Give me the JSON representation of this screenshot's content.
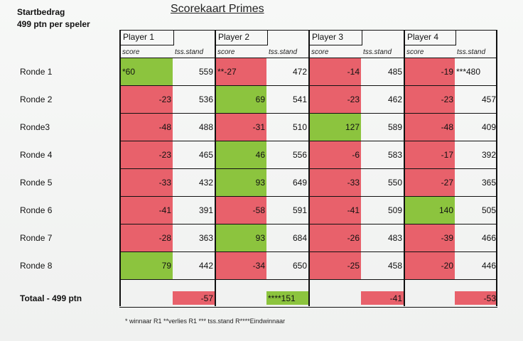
{
  "header": {
    "start_line1": "Startbedrag",
    "start_line2": "499 ptn per speler",
    "title": "Scorekaart Primes"
  },
  "colors": {
    "loss": "#e8616b",
    "win": "#8cc43e"
  },
  "players": [
    {
      "name": "Player 1",
      "score_label": "score",
      "stand_label": "tss.stand"
    },
    {
      "name": "Player 2",
      "score_label": "score",
      "stand_label": "tss.stand"
    },
    {
      "name": "Player 3",
      "score_label": "score",
      "stand_label": "tss.stand"
    },
    {
      "name": "Player 4",
      "score_label": "score",
      "stand_label": "tss.stand"
    }
  ],
  "rounds": [
    {
      "label": "Ronde 1",
      "cells": [
        {
          "score": "*60",
          "color": "green",
          "stand": "559"
        },
        {
          "score": "**-27",
          "color": "red",
          "stand": "472"
        },
        {
          "score": "-14",
          "color": "red",
          "stand": "485"
        },
        {
          "score": "-19",
          "color": "red",
          "stand": "***480"
        }
      ]
    },
    {
      "label": "Ronde 2",
      "cells": [
        {
          "score": "-23",
          "color": "red",
          "stand": "536"
        },
        {
          "score": "69",
          "color": "green",
          "stand": "541"
        },
        {
          "score": "-23",
          "color": "red",
          "stand": "462"
        },
        {
          "score": "-23",
          "color": "red",
          "stand": "457"
        }
      ]
    },
    {
      "label": "Ronde3",
      "cells": [
        {
          "score": "-48",
          "color": "red",
          "stand": "488"
        },
        {
          "score": "-31",
          "color": "red",
          "stand": "510"
        },
        {
          "score": "127",
          "color": "green",
          "stand": "589"
        },
        {
          "score": "-48",
          "color": "red",
          "stand": "409"
        }
      ]
    },
    {
      "label": "Ronde 4",
      "cells": [
        {
          "score": "-23",
          "color": "red",
          "stand": "465"
        },
        {
          "score": "46",
          "color": "green",
          "stand": "556"
        },
        {
          "score": "-6",
          "color": "red",
          "stand": "583"
        },
        {
          "score": "-17",
          "color": "red",
          "stand": "392"
        }
      ]
    },
    {
      "label": "Ronde 5",
      "cells": [
        {
          "score": "-33",
          "color": "red",
          "stand": "432"
        },
        {
          "score": "93",
          "color": "green",
          "stand": "649"
        },
        {
          "score": "-33",
          "color": "red",
          "stand": "550"
        },
        {
          "score": "-27",
          "color": "red",
          "stand": "365"
        }
      ]
    },
    {
      "label": "Ronde 6",
      "cells": [
        {
          "score": "-41",
          "color": "red",
          "stand": "391"
        },
        {
          "score": "-58",
          "color": "red",
          "stand": "591"
        },
        {
          "score": "-41",
          "color": "red",
          "stand": "509"
        },
        {
          "score": "140",
          "color": "green",
          "stand": "505"
        }
      ]
    },
    {
      "label": "Ronde 7",
      "cells": [
        {
          "score": "-28",
          "color": "red",
          "stand": "363"
        },
        {
          "score": "93",
          "color": "green",
          "stand": "684"
        },
        {
          "score": "-26",
          "color": "red",
          "stand": "483"
        },
        {
          "score": "-39",
          "color": "red",
          "stand": "466"
        }
      ]
    },
    {
      "label": "Ronde 8",
      "cells": [
        {
          "score": "79",
          "color": "green",
          "stand": "442"
        },
        {
          "score": "-34",
          "color": "red",
          "stand": "650"
        },
        {
          "score": "-25",
          "color": "red",
          "stand": "458"
        },
        {
          "score": "-20",
          "color": "red",
          "stand": "446"
        }
      ]
    }
  ],
  "total": {
    "label": "Totaal - 499 ptn",
    "values": [
      {
        "value": "-57",
        "color": "red"
      },
      {
        "value": "****151",
        "color": "green"
      },
      {
        "value": "-41",
        "color": "red"
      },
      {
        "value": "-53",
        "color": "red"
      }
    ]
  },
  "footnote": "* winnaar R1   **verlies R1  *** tss.stand R****Eindwinnaar"
}
